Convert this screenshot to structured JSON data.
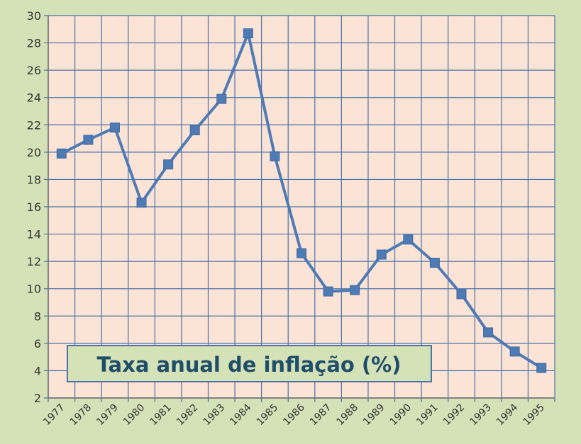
{
  "chart_data": {
    "type": "line",
    "title": "",
    "annotation": "Taxa anual de inflação  (%)",
    "xlabel": "",
    "ylabel": "",
    "ylim": [
      2,
      30
    ],
    "yticks": [
      "2",
      "4",
      "6",
      "8",
      "10",
      "12",
      "14",
      "16",
      "18",
      "20",
      "22",
      "24",
      "26",
      "28",
      "30"
    ],
    "categories": [
      "1977",
      "1978",
      "1979",
      "1980",
      "1981",
      "1982",
      "1983",
      "1984",
      "1985",
      "1986",
      "1987",
      "1988",
      "1989",
      "1990",
      "1991",
      "1992",
      "1993",
      "1994",
      "1995"
    ],
    "series": [
      {
        "values": [
          19.9,
          20.9,
          21.8,
          16.3,
          19.1,
          21.6,
          23.9,
          28.7,
          19.7,
          12.6,
          9.8,
          9.9,
          12.5,
          13.6,
          11.9,
          9.6,
          6.8,
          5.4,
          4.2
        ],
        "color": "#4f7bb5"
      }
    ],
    "grid": true,
    "colors": {
      "background": "#d5e2b8",
      "plot_area": "#fbe3d6",
      "grid": "#4a73a8",
      "line": "#4f7bb5",
      "legend_fill": "#d5e2b8",
      "legend_border": "#4a73a8",
      "legend_text": "#1f4e6a"
    }
  }
}
